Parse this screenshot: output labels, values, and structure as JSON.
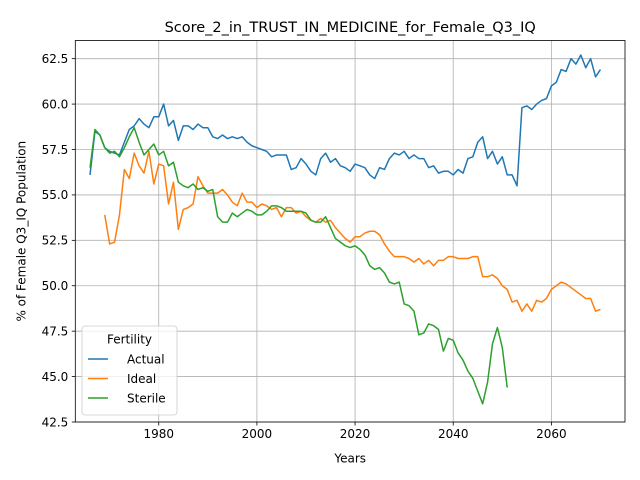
{
  "chart_data": {
    "type": "line",
    "title": "Score_2_in_TRUST_IN_MEDICINE_for_Female_Q3_IQ",
    "xlabel": "Years",
    "ylabel": "% of Female Q3_IQ Population",
    "xlim": [
      1963,
      2075
    ],
    "ylim": [
      42.5,
      63.5
    ],
    "xticks": [
      1980,
      2000,
      2020,
      2040,
      2060
    ],
    "yticks": [
      42.5,
      45.0,
      47.5,
      50.0,
      52.5,
      55.0,
      57.5,
      60.0,
      62.5
    ],
    "grid": true,
    "legend": {
      "title": "Fertility",
      "placement": "lower-left"
    },
    "series": [
      {
        "name": "Actual",
        "color": "#1f77b4",
        "x": [
          1966,
          1967,
          1968,
          1969,
          1970,
          1971,
          1972,
          1973,
          1974,
          1975,
          1976,
          1977,
          1978,
          1979,
          1980,
          1981,
          1982,
          1983,
          1984,
          1985,
          1986,
          1987,
          1988,
          1989,
          1990,
          1991,
          1992,
          1993,
          1994,
          1995,
          1996,
          1997,
          1998,
          1999,
          2000,
          2001,
          2002,
          2003,
          2004,
          2005,
          2006,
          2007,
          2008,
          2009,
          2010,
          2011,
          2012,
          2013,
          2014,
          2015,
          2016,
          2017,
          2018,
          2019,
          2020,
          2021,
          2022,
          2023,
          2024,
          2025,
          2026,
          2027,
          2028,
          2029,
          2030,
          2031,
          2032,
          2033,
          2034,
          2035,
          2036,
          2037,
          2038,
          2039,
          2040,
          2041,
          2042,
          2043,
          2044,
          2045,
          2046,
          2047,
          2048,
          2049,
          2050,
          2051,
          2052,
          2053,
          2054,
          2055,
          2056,
          2057,
          2058,
          2059,
          2060,
          2061,
          2062,
          2063,
          2064,
          2065,
          2066,
          2067,
          2068,
          2069,
          2070
        ],
        "y": [
          56.1,
          58.5,
          58.3,
          57.6,
          57.4,
          57.3,
          57.2,
          57.9,
          58.6,
          58.8,
          59.2,
          58.9,
          58.7,
          59.3,
          59.3,
          60.0,
          58.8,
          59.1,
          58.0,
          58.8,
          58.8,
          58.6,
          58.9,
          58.7,
          58.7,
          58.2,
          58.1,
          58.3,
          58.1,
          58.2,
          58.1,
          58.2,
          57.9,
          57.7,
          57.6,
          57.5,
          57.4,
          57.1,
          57.2,
          57.2,
          57.2,
          56.4,
          56.5,
          57.0,
          56.7,
          56.3,
          56.1,
          57.0,
          57.3,
          56.8,
          57.0,
          56.6,
          56.5,
          56.3,
          56.7,
          56.6,
          56.5,
          56.1,
          55.9,
          56.5,
          56.4,
          57.0,
          57.3,
          57.2,
          57.4,
          57.0,
          57.2,
          57.0,
          57.0,
          56.5,
          56.6,
          56.2,
          56.3,
          56.3,
          56.1,
          56.4,
          56.2,
          57.0,
          57.1,
          57.9,
          58.2,
          57.0,
          57.4,
          56.7,
          57.1,
          56.1,
          56.1,
          55.5,
          59.8,
          59.9,
          59.7,
          60.0,
          60.2,
          60.3,
          61.0,
          61.2,
          61.9,
          61.8,
          62.5,
          62.2,
          62.7,
          62.0,
          62.5,
          61.5,
          61.9
        ]
      },
      {
        "name": "Ideal",
        "color": "#ff7f0e",
        "x": [
          1969,
          1970,
          1971,
          1972,
          1973,
          1974,
          1975,
          1976,
          1977,
          1978,
          1979,
          1980,
          1981,
          1982,
          1983,
          1984,
          1985,
          1986,
          1987,
          1988,
          1989,
          1990,
          1991,
          1992,
          1993,
          1994,
          1995,
          1996,
          1997,
          1998,
          1999,
          2000,
          2001,
          2002,
          2003,
          2004,
          2005,
          2006,
          2007,
          2008,
          2009,
          2010,
          2011,
          2012,
          2013,
          2014,
          2015,
          2016,
          2017,
          2018,
          2019,
          2020,
          2021,
          2022,
          2023,
          2024,
          2025,
          2026,
          2027,
          2028,
          2029,
          2030,
          2031,
          2032,
          2033,
          2034,
          2035,
          2036,
          2037,
          2038,
          2039,
          2040,
          2041,
          2042,
          2043,
          2044,
          2045,
          2046,
          2047,
          2048,
          2049,
          2050,
          2051,
          2052,
          2053,
          2054,
          2055,
          2056,
          2057,
          2058,
          2059,
          2060,
          2061,
          2062,
          2063,
          2064,
          2065,
          2066,
          2067,
          2068,
          2069,
          2070
        ],
        "y": [
          53.9,
          52.3,
          52.4,
          53.9,
          56.4,
          55.9,
          57.3,
          56.6,
          56.2,
          57.4,
          55.6,
          56.7,
          56.6,
          54.5,
          55.7,
          53.1,
          54.2,
          54.3,
          54.5,
          56.0,
          55.5,
          55.1,
          55.1,
          55.1,
          55.3,
          55.0,
          54.6,
          54.4,
          55.1,
          54.6,
          54.6,
          54.3,
          54.5,
          54.4,
          54.2,
          54.3,
          53.8,
          54.3,
          54.3,
          54.0,
          54.1,
          53.8,
          53.6,
          53.5,
          53.7,
          53.5,
          53.6,
          53.2,
          52.9,
          52.6,
          52.4,
          52.7,
          52.7,
          52.9,
          53.0,
          53.0,
          52.8,
          52.3,
          51.9,
          51.6,
          51.6,
          51.6,
          51.5,
          51.3,
          51.5,
          51.2,
          51.4,
          51.1,
          51.4,
          51.4,
          51.6,
          51.6,
          51.5,
          51.5,
          51.5,
          51.6,
          51.6,
          50.5,
          50.5,
          50.6,
          50.4,
          50.0,
          49.8,
          49.1,
          49.2,
          48.6,
          49.0,
          48.6,
          49.2,
          49.1,
          49.3,
          49.8,
          50.0,
          50.2,
          50.1,
          49.9,
          49.7,
          49.5,
          49.3,
          49.3,
          48.6,
          48.7
        ]
      },
      {
        "name": "Sterile",
        "color": "#2ca02c",
        "x": [
          1966,
          1967,
          1968,
          1969,
          1970,
          1971,
          1972,
          1973,
          1974,
          1975,
          1976,
          1977,
          1978,
          1979,
          1980,
          1981,
          1982,
          1983,
          1984,
          1985,
          1986,
          1987,
          1988,
          1989,
          1990,
          1991,
          1992,
          1993,
          1994,
          1995,
          1996,
          1997,
          1998,
          1999,
          2000,
          2001,
          2002,
          2003,
          2004,
          2005,
          2006,
          2007,
          2008,
          2009,
          2010,
          2011,
          2012,
          2013,
          2014,
          2015,
          2016,
          2017,
          2018,
          2019,
          2020,
          2021,
          2022,
          2023,
          2024,
          2025,
          2026,
          2027,
          2028,
          2029,
          2030,
          2031,
          2032,
          2033,
          2034,
          2035,
          2036,
          2037,
          2038,
          2039,
          2040,
          2041,
          2042,
          2043,
          2044,
          2045,
          2046,
          2047,
          2048,
          2049,
          2050,
          2051
        ],
        "y": [
          56.5,
          58.6,
          58.3,
          57.6,
          57.3,
          57.4,
          57.1,
          57.6,
          58.2,
          58.7,
          57.9,
          57.2,
          57.5,
          57.8,
          57.2,
          57.4,
          56.6,
          56.8,
          55.7,
          55.5,
          55.4,
          55.6,
          55.3,
          55.4,
          55.2,
          55.3,
          53.8,
          53.5,
          53.5,
          54.0,
          53.8,
          54.0,
          54.2,
          54.1,
          53.9,
          53.9,
          54.1,
          54.4,
          54.4,
          54.3,
          54.1,
          54.1,
          54.1,
          54.1,
          54.0,
          53.6,
          53.5,
          53.5,
          53.8,
          53.2,
          52.6,
          52.4,
          52.2,
          52.1,
          52.2,
          52.0,
          51.7,
          51.1,
          50.9,
          51.0,
          50.7,
          50.2,
          50.1,
          50.2,
          49.0,
          48.9,
          48.6,
          47.3,
          47.4,
          47.9,
          47.8,
          47.6,
          46.4,
          47.1,
          47.0,
          46.3,
          45.9,
          45.3,
          44.9,
          44.2,
          43.5,
          44.7,
          46.8,
          47.7,
          46.6,
          44.4
        ]
      }
    ]
  }
}
